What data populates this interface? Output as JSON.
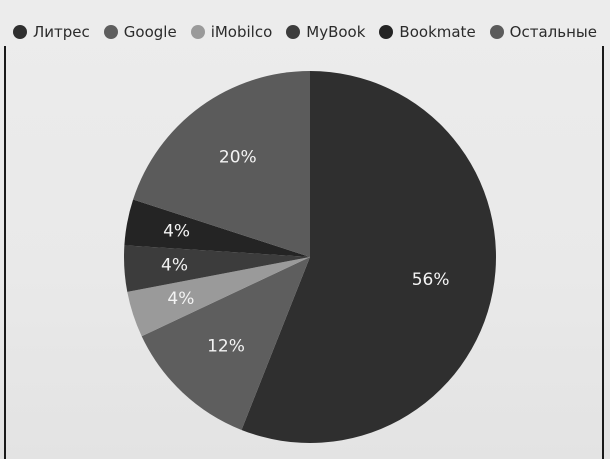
{
  "chart_data": {
    "type": "pie",
    "title": "",
    "legend_position": "top",
    "series": [
      {
        "name": "Литрес",
        "value": 56,
        "label": "56%",
        "color": "#2f2f2f"
      },
      {
        "name": "Google",
        "value": 12,
        "label": "12%",
        "color": "#5e5e5e"
      },
      {
        "name": "iMobilco",
        "value": 4,
        "label": "4%",
        "color": "#9a9a9a"
      },
      {
        "name": "MyBook",
        "value": 4,
        "label": "4%",
        "color": "#3c3c3c"
      },
      {
        "name": "Bookmate",
        "value": 4,
        "label": "4%",
        "color": "#242424"
      },
      {
        "name": "Остальные",
        "value": 20,
        "label": "20%",
        "color": "#5b5b5b"
      }
    ]
  }
}
